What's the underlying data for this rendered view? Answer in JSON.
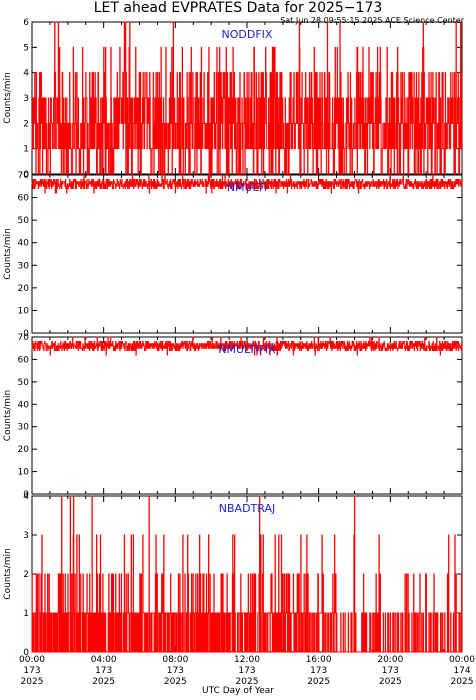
{
  "header": {
    "title": "LET ahead EVPRATES Data for 2025−173",
    "timestamp": "Sat Jun 28 09:55:15 2025 ACE Science Center"
  },
  "chart_data": [
    {
      "type": "line",
      "panel": "NODDFIX",
      "series": [
        {
          "name": "NODDFIX",
          "color": "#ff0000"
        }
      ],
      "ylabel": "Counts/min",
      "ylim": [
        0,
        6
      ],
      "yticks": [
        "0",
        "1",
        "2",
        "3",
        "4",
        "5",
        "6"
      ],
      "baseline": 2,
      "spikes_up": [
        3,
        4,
        5,
        6
      ],
      "spikes_down": [
        0,
        1
      ]
    },
    {
      "type": "line",
      "panel": "NMULTI",
      "series": [
        {
          "name": "NMULTI",
          "color": "#ff0000"
        }
      ],
      "ylabel": "Counts/min",
      "ylim": [
        0,
        70
      ],
      "yticks": [
        "0",
        "10",
        "20",
        "30",
        "40",
        "50",
        "60",
        "70"
      ],
      "baseline": 66,
      "range": [
        62,
        70
      ]
    },
    {
      "type": "line",
      "panel": "NMULTIFIX",
      "series": [
        {
          "name": "NMULTIFIX",
          "color": "#ff0000"
        }
      ],
      "ylabel": "Counts/min",
      "ylim": [
        0,
        70
      ],
      "yticks": [
        "0",
        "10",
        "20",
        "30",
        "40",
        "50",
        "60",
        "70"
      ],
      "baseline": 66,
      "range": [
        62,
        70
      ]
    },
    {
      "type": "line",
      "panel": "NBADTRAJ",
      "series": [
        {
          "name": "NBADTRAJ",
          "color": "#ff0000"
        }
      ],
      "ylabel": "Counts/min",
      "ylim": [
        0,
        4
      ],
      "yticks": [
        "0",
        "1",
        "2",
        "3",
        "4"
      ],
      "baseline": 0,
      "spikes_up": [
        1,
        2,
        3,
        4
      ]
    }
  ],
  "x_axis": {
    "label": "UTC Day of Year",
    "range_hours": [
      0,
      24
    ],
    "ticks": [
      {
        "hour": 0,
        "time": "00:00",
        "doy": "173",
        "year": "2025"
      },
      {
        "hour": 4,
        "time": "04:00",
        "doy": "173",
        "year": "2025"
      },
      {
        "hour": 8,
        "time": "08:00",
        "doy": "173",
        "year": "2025"
      },
      {
        "hour": 12,
        "time": "12:00",
        "doy": "173",
        "year": "2025"
      },
      {
        "hour": 16,
        "time": "16:00",
        "doy": "173",
        "year": "2025"
      },
      {
        "hour": 20,
        "time": "20:00",
        "doy": "173",
        "year": "2025"
      },
      {
        "hour": 24,
        "time": "00:00",
        "doy": "174",
        "year": "2025"
      }
    ]
  }
}
